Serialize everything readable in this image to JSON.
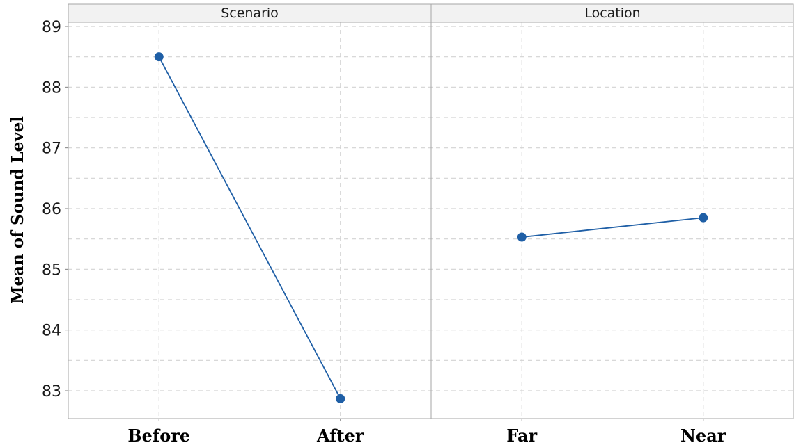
{
  "chart_data": {
    "type": "line",
    "ylabel": "Mean of Sound Level",
    "ylim": [
      82.6,
      89.3
    ],
    "y_ticks": [
      83,
      84,
      85,
      86,
      87,
      88,
      89
    ],
    "grid": true,
    "series_color": "#1f5fa6",
    "panels": [
      {
        "title": "Scenario",
        "categories": [
          "Before",
          "After"
        ],
        "values": [
          88.5,
          82.87
        ]
      },
      {
        "title": "Location",
        "categories": [
          "Far",
          "Near"
        ],
        "values": [
          85.53,
          85.85
        ]
      }
    ]
  }
}
